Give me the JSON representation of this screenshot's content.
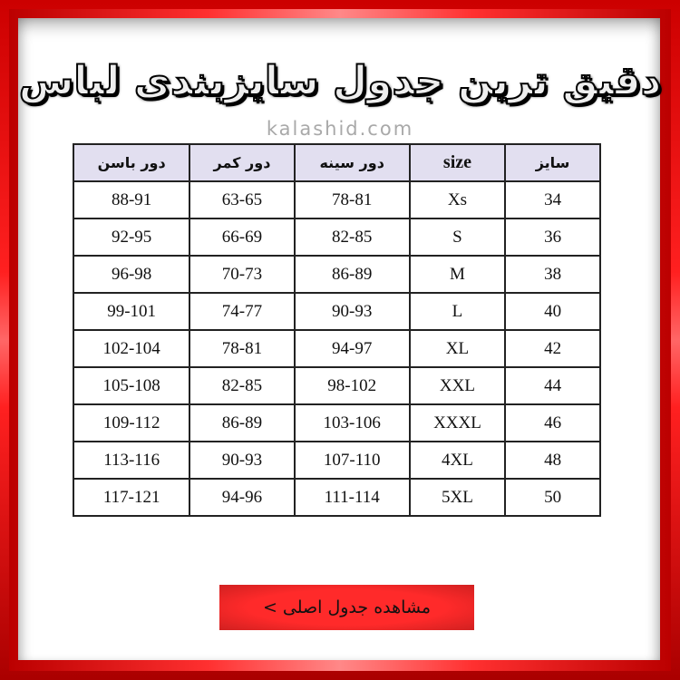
{
  "title": "دقیق ترین جدول سایزبندی لباس",
  "site": "kalashid.com",
  "table": {
    "headers": [
      "سایز",
      "size",
      "دور سینه",
      "دور کمر",
      "دور باسن"
    ],
    "rows": [
      [
        "34",
        "Xs",
        "78-81",
        "63-65",
        "88-91"
      ],
      [
        "36",
        "S",
        "82-85",
        "66-69",
        "92-95"
      ],
      [
        "38",
        "M",
        "86-89",
        "70-73",
        "96-98"
      ],
      [
        "40",
        "L",
        "90-93",
        "74-77",
        "99-101"
      ],
      [
        "42",
        "XL",
        "94-97",
        "78-81",
        "102-104"
      ],
      [
        "44",
        "XXL",
        "98-102",
        "82-85",
        "105-108"
      ],
      [
        "46",
        "XXXL",
        "103-106",
        "86-89",
        "109-112"
      ],
      [
        "48",
        "4XL",
        "107-110",
        "90-93",
        "113-116"
      ],
      [
        "50",
        "5XL",
        "111-114",
        "94-96",
        "117-121"
      ]
    ]
  },
  "button": {
    "label": "مشاهده جدول اصلی >"
  },
  "colors": {
    "frame": "#ff0000",
    "header_bg": "#e2dff0",
    "button": "#ff2a2a"
  }
}
